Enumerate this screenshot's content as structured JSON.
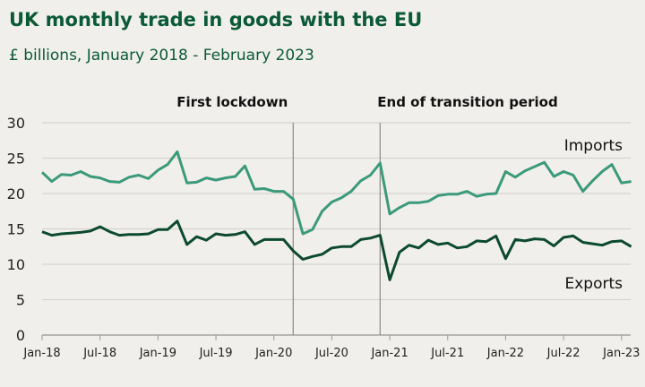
{
  "chart_data": {
    "type": "line",
    "title": "UK monthly trade in goods  with the EU",
    "subtitle": "£ billions, January 2018 - February 2023",
    "xlabel": "",
    "ylabel": "",
    "ylim": [
      0,
      30
    ],
    "yticks": [
      0,
      5,
      10,
      15,
      20,
      25,
      30
    ],
    "grid": "horizontal",
    "x_start": "Jan-18",
    "x_end": "Feb-23",
    "xtick_labels": [
      "Jan-18",
      "Jul-18",
      "Jan-19",
      "Jul-19",
      "Jan-20",
      "Jul-20",
      "Jan-21",
      "Jul-21",
      "Jan-22",
      "Jul-22",
      "Jan-23"
    ],
    "annotations": [
      {
        "text": "First lockdown",
        "at": "Mar-20"
      },
      {
        "text": "End of transition period",
        "at": "Dec-20"
      }
    ],
    "series": [
      {
        "name": "Imports",
        "color": "#3b9a7b",
        "values": [
          23.0,
          21.7,
          22.7,
          22.6,
          23.1,
          22.4,
          22.2,
          21.7,
          21.6,
          22.3,
          22.6,
          22.1,
          23.3,
          24.1,
          25.9,
          21.5,
          21.6,
          22.2,
          21.9,
          22.2,
          22.4,
          23.9,
          20.6,
          20.7,
          20.3,
          20.3,
          19.2,
          14.3,
          14.9,
          17.5,
          18.8,
          19.4,
          20.3,
          21.8,
          22.6,
          24.3,
          17.1,
          18.0,
          18.7,
          18.7,
          18.9,
          19.7,
          19.9,
          19.9,
          20.3,
          19.6,
          19.9,
          20.0,
          23.1,
          22.3,
          23.2,
          23.8,
          24.4,
          22.4,
          23.1,
          22.6,
          20.3,
          21.8,
          23.1,
          24.1,
          21.5,
          21.7
        ]
      },
      {
        "name": "Exports",
        "color": "#0c4a2f",
        "values": [
          14.6,
          14.1,
          14.3,
          14.4,
          14.5,
          14.7,
          15.3,
          14.6,
          14.1,
          14.2,
          14.2,
          14.3,
          14.9,
          14.9,
          16.1,
          12.8,
          13.9,
          13.4,
          14.3,
          14.1,
          14.2,
          14.6,
          12.8,
          13.5,
          13.5,
          13.5,
          11.9,
          10.7,
          11.1,
          11.4,
          12.3,
          12.5,
          12.5,
          13.5,
          13.7,
          14.1,
          7.8,
          11.7,
          12.7,
          12.3,
          13.4,
          12.8,
          13.0,
          12.3,
          12.5,
          13.3,
          13.2,
          14.0,
          10.8,
          13.5,
          13.3,
          13.6,
          13.5,
          12.6,
          13.8,
          14.0,
          13.1,
          12.9,
          12.7,
          13.2,
          13.3,
          12.5
        ]
      }
    ]
  }
}
